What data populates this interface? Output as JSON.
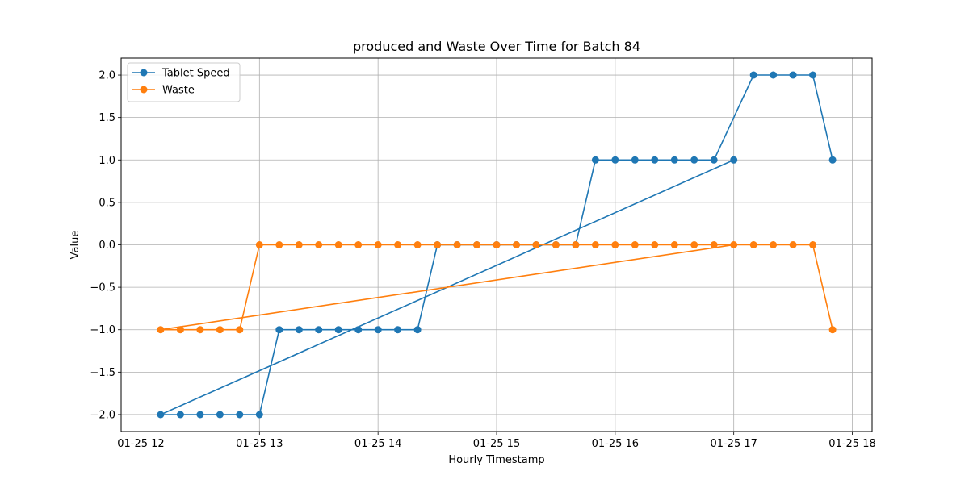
{
  "chart_data": {
    "type": "line",
    "title": "produced and Waste Over Time for Batch 84",
    "xlabel": "Hourly Timestamp",
    "ylabel": "Value",
    "ylim": [
      -2.2,
      2.2
    ],
    "xlim": [
      "01-25 11:50",
      "01-25 18:10"
    ],
    "grid": true,
    "legend_position": "top-left",
    "x_ticks": [
      "01-25 12",
      "01-25 13",
      "01-25 14",
      "01-25 15",
      "01-25 16",
      "01-25 17",
      "01-25 18"
    ],
    "y_ticks": [
      "−2.0",
      "−1.5",
      "−1.0",
      "−0.5",
      "0.0",
      "0.5",
      "1.0",
      "1.5",
      "2.0"
    ],
    "series": [
      {
        "name": "Tablet Speed",
        "color": "#1f77b4",
        "points": [
          [
            "01-25 17:00",
            1
          ],
          [
            "01-25 12:10",
            -2
          ],
          [
            "01-25 12:20",
            -2
          ],
          [
            "01-25 12:30",
            -2
          ],
          [
            "01-25 12:40",
            -2
          ],
          [
            "01-25 12:50",
            -2
          ],
          [
            "01-25 13:00",
            -2
          ],
          [
            "01-25 13:10",
            -1
          ],
          [
            "01-25 13:20",
            -1
          ],
          [
            "01-25 13:30",
            -1
          ],
          [
            "01-25 13:40",
            -1
          ],
          [
            "01-25 13:50",
            -1
          ],
          [
            "01-25 14:00",
            -1
          ],
          [
            "01-25 14:10",
            -1
          ],
          [
            "01-25 14:20",
            -1
          ],
          [
            "01-25 14:30",
            0
          ],
          [
            "01-25 14:40",
            0
          ],
          [
            "01-25 14:50",
            0
          ],
          [
            "01-25 15:00",
            0
          ],
          [
            "01-25 15:10",
            0
          ],
          [
            "01-25 15:20",
            0
          ],
          [
            "01-25 15:30",
            0
          ],
          [
            "01-25 15:40",
            0
          ],
          [
            "01-25 15:50",
            1
          ],
          [
            "01-25 16:00",
            1
          ],
          [
            "01-25 16:10",
            1
          ],
          [
            "01-25 16:20",
            1
          ],
          [
            "01-25 16:30",
            1
          ],
          [
            "01-25 16:40",
            1
          ],
          [
            "01-25 16:50",
            1
          ],
          [
            "01-25 17:10",
            2
          ],
          [
            "01-25 17:20",
            2
          ],
          [
            "01-25 17:30",
            2
          ],
          [
            "01-25 17:40",
            2
          ],
          [
            "01-25 17:50",
            1
          ]
        ]
      },
      {
        "name": "Waste",
        "color": "#ff7f0e",
        "points": [
          [
            "01-25 17:00",
            0
          ],
          [
            "01-25 12:10",
            -1
          ],
          [
            "01-25 12:20",
            -1
          ],
          [
            "01-25 12:30",
            -1
          ],
          [
            "01-25 12:40",
            -1
          ],
          [
            "01-25 12:50",
            -1
          ],
          [
            "01-25 13:00",
            0
          ],
          [
            "01-25 13:10",
            0
          ],
          [
            "01-25 13:20",
            0
          ],
          [
            "01-25 13:30",
            0
          ],
          [
            "01-25 13:40",
            0
          ],
          [
            "01-25 13:50",
            0
          ],
          [
            "01-25 14:00",
            0
          ],
          [
            "01-25 14:10",
            0
          ],
          [
            "01-25 14:20",
            0
          ],
          [
            "01-25 14:30",
            0
          ],
          [
            "01-25 14:40",
            0
          ],
          [
            "01-25 14:50",
            0
          ],
          [
            "01-25 15:00",
            0
          ],
          [
            "01-25 15:10",
            0
          ],
          [
            "01-25 15:20",
            0
          ],
          [
            "01-25 15:30",
            0
          ],
          [
            "01-25 15:40",
            0
          ],
          [
            "01-25 15:50",
            0
          ],
          [
            "01-25 16:00",
            0
          ],
          [
            "01-25 16:10",
            0
          ],
          [
            "01-25 16:20",
            0
          ],
          [
            "01-25 16:30",
            0
          ],
          [
            "01-25 16:40",
            0
          ],
          [
            "01-25 16:50",
            0
          ],
          [
            "01-25 17:10",
            0
          ],
          [
            "01-25 17:20",
            0
          ],
          [
            "01-25 17:30",
            0
          ],
          [
            "01-25 17:40",
            0
          ],
          [
            "01-25 17:50",
            -1
          ]
        ]
      }
    ]
  }
}
